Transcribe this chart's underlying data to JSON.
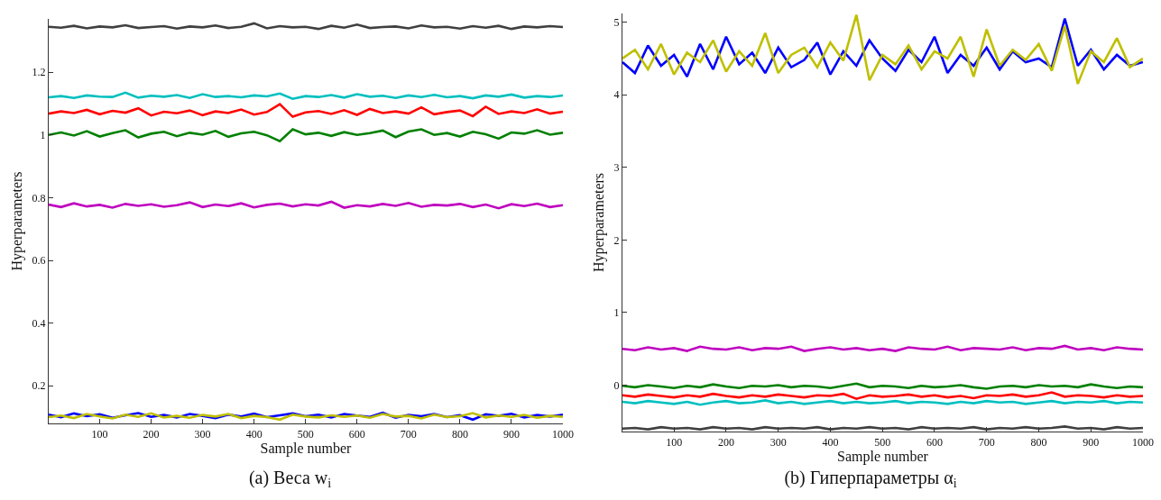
{
  "chart_data": [
    {
      "type": "line",
      "title": "(a) Веса w$_{i}$",
      "xlabel": "Sample number",
      "ylabel": "Hyperparameters",
      "xlim": [
        1,
        1000
      ],
      "xticks": [
        100,
        200,
        300,
        400,
        500,
        600,
        700,
        800,
        900,
        1000
      ],
      "ylim": [
        0.08,
        1.37
      ],
      "yticks": [
        0.2,
        0.4,
        0.6,
        0.8,
        1,
        1.2
      ],
      "marker": "none",
      "line_style": "solid",
      "x": [
        1,
        25,
        50,
        75,
        100,
        125,
        150,
        175,
        200,
        225,
        250,
        275,
        300,
        325,
        350,
        375,
        400,
        425,
        450,
        475,
        500,
        525,
        550,
        575,
        600,
        625,
        650,
        675,
        700,
        725,
        750,
        775,
        800,
        825,
        850,
        875,
        900,
        925,
        950,
        975,
        1000
      ],
      "series": [
        {
          "color": "#404040",
          "values": [
            1.345,
            1.342,
            1.348,
            1.34,
            1.346,
            1.343,
            1.35,
            1.341,
            1.344,
            1.347,
            1.339,
            1.346,
            1.343,
            1.349,
            1.341,
            1.345,
            1.356,
            1.34,
            1.347,
            1.343,
            1.345,
            1.338,
            1.348,
            1.342,
            1.352,
            1.341,
            1.344,
            1.346,
            1.34,
            1.349,
            1.343,
            1.345,
            1.339,
            1.347,
            1.342,
            1.348,
            1.338,
            1.346,
            1.343,
            1.347,
            1.344
          ]
        },
        {
          "color": "#00bfbf",
          "values": [
            1.12,
            1.124,
            1.118,
            1.126,
            1.122,
            1.121,
            1.135,
            1.119,
            1.125,
            1.122,
            1.127,
            1.118,
            1.13,
            1.121,
            1.124,
            1.12,
            1.126,
            1.123,
            1.132,
            1.115,
            1.124,
            1.121,
            1.127,
            1.119,
            1.13,
            1.122,
            1.125,
            1.118,
            1.126,
            1.121,
            1.128,
            1.12,
            1.124,
            1.117,
            1.126,
            1.122,
            1.129,
            1.119,
            1.124,
            1.121,
            1.126
          ]
        },
        {
          "color": "#ff0000",
          "values": [
            1.068,
            1.075,
            1.07,
            1.08,
            1.066,
            1.077,
            1.071,
            1.085,
            1.062,
            1.074,
            1.069,
            1.078,
            1.063,
            1.075,
            1.07,
            1.081,
            1.065,
            1.073,
            1.098,
            1.058,
            1.072,
            1.076,
            1.067,
            1.079,
            1.064,
            1.083,
            1.07,
            1.075,
            1.068,
            1.088,
            1.066,
            1.073,
            1.078,
            1.06,
            1.09,
            1.067,
            1.075,
            1.07,
            1.082,
            1.068,
            1.074
          ]
        },
        {
          "color": "#008000",
          "values": [
            1.0,
            1.008,
            0.998,
            1.012,
            0.995,
            1.006,
            1.015,
            0.992,
            1.004,
            1.01,
            0.996,
            1.007,
            1.001,
            1.013,
            0.994,
            1.005,
            1.01,
            0.999,
            0.98,
            1.018,
            1.002,
            1.007,
            0.997,
            1.009,
            1.0,
            1.006,
            1.014,
            0.993,
            1.011,
            1.018,
            1.0,
            1.006,
            0.995,
            1.01,
            1.002,
            0.988,
            1.008,
            1.004,
            1.015,
            1.001,
            1.007
          ]
        },
        {
          "color": "#bf00bf",
          "values": [
            0.778,
            0.77,
            0.782,
            0.772,
            0.777,
            0.768,
            0.78,
            0.774,
            0.779,
            0.771,
            0.776,
            0.785,
            0.77,
            0.778,
            0.773,
            0.782,
            0.769,
            0.777,
            0.781,
            0.772,
            0.779,
            0.775,
            0.787,
            0.768,
            0.776,
            0.772,
            0.78,
            0.774,
            0.783,
            0.771,
            0.777,
            0.775,
            0.78,
            0.77,
            0.778,
            0.766,
            0.779,
            0.773,
            0.781,
            0.77,
            0.776
          ]
        },
        {
          "color": "#0000ff",
          "values": [
            0.108,
            0.1,
            0.112,
            0.103,
            0.109,
            0.098,
            0.106,
            0.113,
            0.101,
            0.107,
            0.099,
            0.11,
            0.104,
            0.097,
            0.108,
            0.102,
            0.111,
            0.1,
            0.106,
            0.112,
            0.103,
            0.108,
            0.099,
            0.11,
            0.105,
            0.101,
            0.114,
            0.098,
            0.107,
            0.103,
            0.11,
            0.1,
            0.106,
            0.092,
            0.109,
            0.104,
            0.111,
            0.099,
            0.107,
            0.102,
            0.108
          ]
        },
        {
          "color": "#bfbf00",
          "values": [
            0.1,
            0.105,
            0.097,
            0.11,
            0.102,
            0.096,
            0.108,
            0.101,
            0.112,
            0.099,
            0.104,
            0.098,
            0.107,
            0.102,
            0.11,
            0.097,
            0.104,
            0.1,
            0.092,
            0.108,
            0.102,
            0.099,
            0.106,
            0.101,
            0.105,
            0.098,
            0.11,
            0.102,
            0.104,
            0.096,
            0.108,
            0.1,
            0.103,
            0.113,
            0.099,
            0.105,
            0.101,
            0.107,
            0.098,
            0.104,
            0.101
          ]
        }
      ]
    },
    {
      "type": "line",
      "title": "(b) Гиперпараметры α$_{i}$",
      "xlabel": "Sample number",
      "ylabel": "Hyperparameters",
      "xlim": [
        1,
        1000
      ],
      "xticks": [
        100,
        200,
        300,
        400,
        500,
        600,
        700,
        800,
        900,
        1000
      ],
      "ylim": [
        -0.64,
        5.12
      ],
      "yticks": [
        0,
        1,
        2,
        3,
        4,
        5
      ],
      "marker": "none",
      "line_style": "solid",
      "x": [
        1,
        25,
        50,
        75,
        100,
        125,
        150,
        175,
        200,
        225,
        250,
        275,
        300,
        325,
        350,
        375,
        400,
        425,
        450,
        475,
        500,
        525,
        550,
        575,
        600,
        625,
        650,
        675,
        700,
        725,
        750,
        775,
        800,
        825,
        850,
        875,
        900,
        925,
        950,
        975,
        1000
      ],
      "series": [
        {
          "color": "#0000ff",
          "values": [
            4.45,
            4.3,
            4.68,
            4.4,
            4.55,
            4.25,
            4.7,
            4.35,
            4.8,
            4.42,
            4.58,
            4.3,
            4.65,
            4.38,
            4.48,
            4.72,
            4.28,
            4.6,
            4.4,
            4.75,
            4.5,
            4.33,
            4.62,
            4.45,
            4.8,
            4.3,
            4.55,
            4.4,
            4.65,
            4.35,
            4.6,
            4.45,
            4.5,
            4.38,
            5.05,
            4.4,
            4.62,
            4.35,
            4.55,
            4.4,
            4.45
          ]
        },
        {
          "color": "#bfbf00",
          "values": [
            4.5,
            4.62,
            4.35,
            4.7,
            4.28,
            4.58,
            4.45,
            4.75,
            4.32,
            4.6,
            4.4,
            4.85,
            4.3,
            4.55,
            4.65,
            4.38,
            4.72,
            4.47,
            5.1,
            4.2,
            4.55,
            4.42,
            4.68,
            4.35,
            4.6,
            4.5,
            4.8,
            4.25,
            4.9,
            4.4,
            4.62,
            4.48,
            4.7,
            4.33,
            4.95,
            4.15,
            4.6,
            4.45,
            4.78,
            4.38,
            4.5
          ]
        },
        {
          "color": "#bf00bf",
          "values": [
            0.5,
            0.48,
            0.52,
            0.49,
            0.51,
            0.47,
            0.53,
            0.5,
            0.49,
            0.52,
            0.48,
            0.51,
            0.5,
            0.53,
            0.47,
            0.5,
            0.52,
            0.49,
            0.51,
            0.48,
            0.5,
            0.47,
            0.52,
            0.5,
            0.49,
            0.53,
            0.48,
            0.51,
            0.5,
            0.49,
            0.52,
            0.48,
            0.51,
            0.5,
            0.54,
            0.49,
            0.51,
            0.48,
            0.52,
            0.5,
            0.49
          ]
        },
        {
          "color": "#008000",
          "values": [
            -0.01,
            -0.03,
            0.0,
            -0.02,
            -0.04,
            -0.01,
            -0.03,
            0.01,
            -0.02,
            -0.04,
            -0.01,
            -0.02,
            0.0,
            -0.03,
            -0.01,
            -0.02,
            -0.04,
            -0.01,
            0.02,
            -0.03,
            -0.01,
            -0.02,
            -0.04,
            -0.01,
            -0.03,
            -0.02,
            0.0,
            -0.03,
            -0.05,
            -0.02,
            -0.01,
            -0.03,
            0.0,
            -0.02,
            -0.01,
            -0.03,
            0.01,
            -0.02,
            -0.04,
            -0.02,
            -0.03
          ]
        },
        {
          "color": "#ff0000",
          "values": [
            -0.14,
            -0.16,
            -0.13,
            -0.15,
            -0.17,
            -0.14,
            -0.16,
            -0.12,
            -0.15,
            -0.17,
            -0.14,
            -0.16,
            -0.13,
            -0.15,
            -0.17,
            -0.14,
            -0.15,
            -0.12,
            -0.19,
            -0.14,
            -0.16,
            -0.15,
            -0.13,
            -0.16,
            -0.14,
            -0.17,
            -0.15,
            -0.18,
            -0.14,
            -0.15,
            -0.13,
            -0.16,
            -0.14,
            -0.1,
            -0.16,
            -0.14,
            -0.15,
            -0.17,
            -0.14,
            -0.16,
            -0.15
          ]
        },
        {
          "color": "#00bfbf",
          "values": [
            -0.23,
            -0.25,
            -0.22,
            -0.24,
            -0.26,
            -0.23,
            -0.27,
            -0.24,
            -0.22,
            -0.25,
            -0.24,
            -0.21,
            -0.25,
            -0.23,
            -0.26,
            -0.24,
            -0.22,
            -0.25,
            -0.23,
            -0.25,
            -0.24,
            -0.22,
            -0.25,
            -0.23,
            -0.24,
            -0.26,
            -0.23,
            -0.25,
            -0.22,
            -0.24,
            -0.23,
            -0.26,
            -0.24,
            -0.22,
            -0.25,
            -0.23,
            -0.24,
            -0.22,
            -0.25,
            -0.23,
            -0.24
          ]
        },
        {
          "color": "#404040",
          "values": [
            -0.6,
            -0.59,
            -0.61,
            -0.58,
            -0.6,
            -0.59,
            -0.61,
            -0.58,
            -0.6,
            -0.59,
            -0.61,
            -0.58,
            -0.6,
            -0.59,
            -0.6,
            -0.58,
            -0.61,
            -0.59,
            -0.6,
            -0.58,
            -0.6,
            -0.59,
            -0.61,
            -0.58,
            -0.6,
            -0.59,
            -0.6,
            -0.58,
            -0.61,
            -0.59,
            -0.6,
            -0.58,
            -0.6,
            -0.59,
            -0.57,
            -0.6,
            -0.59,
            -0.61,
            -0.58,
            -0.6,
            -0.59
          ]
        }
      ]
    }
  ]
}
